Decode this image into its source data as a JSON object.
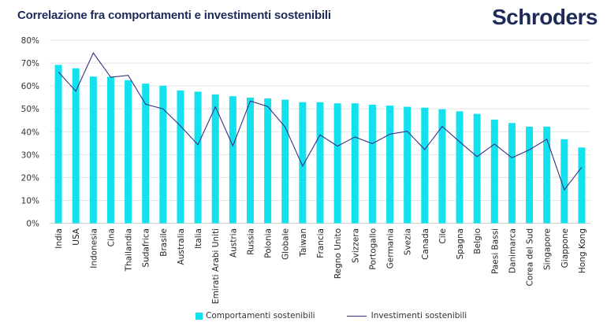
{
  "header": {
    "title": "Correlazione fra comportamenti e investimenti sostenibili",
    "logo": "Schroders"
  },
  "colors": {
    "bars": "#13e2ee",
    "line": "#3b2d83",
    "grid": "#e3e3e3",
    "title": "#1e2b58"
  },
  "chart_data": {
    "type": "bar+line",
    "title": "Correlazione fra comportamenti e investimenti sostenibili",
    "ylim": [
      0,
      80
    ],
    "yticks": [
      "0%",
      "10%",
      "20%",
      "30%",
      "40%",
      "50%",
      "60%",
      "70%",
      "80%"
    ],
    "grid": true,
    "legend": "bottom",
    "categories": [
      "India",
      "USA",
      "Indonesia",
      "Cina",
      "Thailandia",
      "Sudafrica",
      "Brasile",
      "Australia",
      "Italia",
      "Emirati Arabi Uniti",
      "Austria",
      "Russia",
      "Polonia",
      "Globale",
      "Taiwan",
      "Francia",
      "Regno Unito",
      "Svizzera",
      "Portogallo",
      "Germania",
      "Svezia",
      "Canada",
      "Cile",
      "Spagna",
      "Belgio",
      "Paesi Bassi",
      "Danimarca",
      "Corea del Sud",
      "Singapore",
      "Giappone",
      "Hong Kong"
    ],
    "series": [
      {
        "name": "Comportamenti sostenibili",
        "type": "bar",
        "values": [
          69.2,
          67.7,
          64.1,
          64.0,
          62.5,
          61.0,
          60.1,
          58.0,
          57.5,
          56.3,
          55.5,
          54.9,
          54.5,
          54.0,
          52.9,
          52.9,
          52.4,
          52.4,
          51.8,
          51.4,
          50.9,
          50.5,
          49.8,
          48.9,
          47.8,
          45.3,
          43.8,
          42.2,
          42.2,
          36.7,
          33.1
        ]
      },
      {
        "name": "Investimenti sostenibili",
        "type": "line",
        "values": [
          66.1,
          57.7,
          74.4,
          63.8,
          64.6,
          52.0,
          50.0,
          42.5,
          34.3,
          50.9,
          33.8,
          53.4,
          51.0,
          42.0,
          25.0,
          38.6,
          33.7,
          37.7,
          34.8,
          38.9,
          40.2,
          32.2,
          42.3,
          35.6,
          29.1,
          34.6,
          28.6,
          32.1,
          36.7,
          14.6,
          24.5
        ]
      }
    ]
  }
}
